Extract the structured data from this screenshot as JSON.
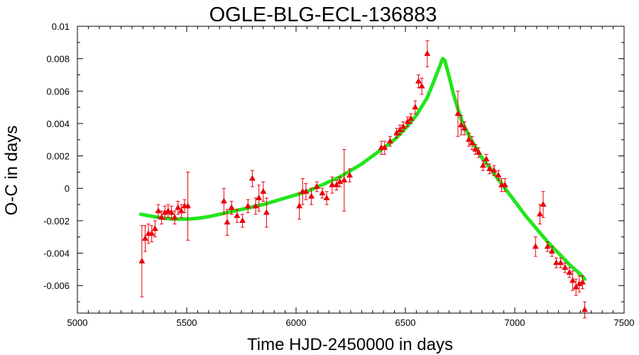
{
  "chart_data": {
    "type": "scatter",
    "title": "OGLE-BLG-ECL-136883",
    "xlabel": "Time HJD-2450000 in days",
    "ylabel": "O-C in days",
    "xlim": [
      5000,
      7500
    ],
    "ylim": [
      -0.0077,
      0.01
    ],
    "xticks": [
      5000,
      5500,
      6000,
      6500,
      7000,
      7500
    ],
    "xtick_labels": [
      "5000",
      "5500",
      "6000",
      "6500",
      "7000",
      "7500"
    ],
    "yticks": [
      -0.006,
      -0.004,
      -0.002,
      0,
      0.002,
      0.004,
      0.006,
      0.008,
      0.01
    ],
    "ytick_labels": [
      "-0.006",
      "-0.004",
      "-0.002",
      "0",
      "0.002",
      "0.004",
      "0.006",
      "0.008",
      "0.01"
    ],
    "grid": false,
    "colors": {
      "points": "#e8000b",
      "model": "#22e61c",
      "axes": "#000000"
    },
    "series": [
      {
        "kind": "points_with_errorbars",
        "marker": "triangle",
        "x": [
          5295,
          5310,
          5325,
          5340,
          5355,
          5370,
          5385,
          5400,
          5415,
          5430,
          5445,
          5460,
          5475,
          5490,
          5505,
          5670,
          5685,
          5705,
          5730,
          5755,
          5780,
          5800,
          5815,
          5830,
          5850,
          5865,
          6015,
          6030,
          6045,
          6070,
          6095,
          6120,
          6140,
          6165,
          6185,
          6200,
          6220,
          6245,
          6390,
          6405,
          6430,
          6460,
          6475,
          6490,
          6510,
          6525,
          6545,
          6560,
          6575,
          6600,
          6740,
          6755,
          6770,
          6790,
          6805,
          6820,
          6835,
          6855,
          6870,
          6885,
          6905,
          6925,
          6940,
          6955,
          7095,
          7115,
          7130,
          7150,
          7170,
          7190,
          7210,
          7230,
          7250,
          7265,
          7280,
          7295,
          7310,
          7320
        ],
        "y": [
          -0.0045,
          -0.0031,
          -0.0028,
          -0.0028,
          -0.0025,
          -0.0014,
          -0.0018,
          -0.0015,
          -0.0014,
          -0.0015,
          -0.0018,
          -0.0012,
          -0.0014,
          -0.0011,
          -0.0011,
          -0.0008,
          -0.0021,
          -0.0012,
          -0.0017,
          -0.002,
          -0.0011,
          0.0006,
          -0.0011,
          -0.0006,
          -0.0002,
          -0.0015,
          -0.0011,
          -0.0002,
          -0.0002,
          -0.0005,
          0.0001,
          -0.0003,
          -0.0006,
          0.0002,
          0.0002,
          0.0004,
          0.0005,
          0.0008,
          0.0025,
          0.0025,
          0.0029,
          0.0034,
          0.0036,
          0.0038,
          0.0041,
          0.0043,
          0.005,
          0.0066,
          0.0063,
          0.0083,
          0.0046,
          0.0039,
          0.0037,
          0.003,
          0.0028,
          0.0024,
          0.0022,
          0.0014,
          0.0018,
          0.0012,
          0.0011,
          0.0008,
          0.0002,
          0.0002,
          -0.0036,
          -0.0016,
          -0.001,
          -0.0036,
          -0.0039,
          -0.0046,
          -0.0046,
          -0.0049,
          -0.0052,
          -0.0057,
          -0.0061,
          -0.0059,
          -0.0058,
          -0.0075
        ],
        "yerr": [
          0.0022,
          0.0008,
          0.0006,
          0.0005,
          0.0005,
          0.0004,
          0.0004,
          0.0004,
          0.0004,
          0.0004,
          0.0004,
          0.0004,
          0.0004,
          0.0004,
          0.0021,
          0.0008,
          0.0008,
          0.0004,
          0.0004,
          0.0004,
          0.0004,
          0.0005,
          0.0005,
          0.0008,
          0.0006,
          0.0009,
          0.0008,
          0.0008,
          0.0005,
          0.0005,
          0.0003,
          0.0003,
          0.0004,
          0.0005,
          0.0003,
          0.0003,
          0.0019,
          0.0004,
          0.0004,
          0.0004,
          0.0003,
          0.0003,
          0.0003,
          0.0003,
          0.0003,
          0.0003,
          0.0004,
          0.0004,
          0.0005,
          0.0008,
          0.0014,
          0.0006,
          0.0004,
          0.0004,
          0.0004,
          0.0003,
          0.0003,
          0.0003,
          0.0003,
          0.0003,
          0.0003,
          0.0003,
          0.0004,
          0.0004,
          0.0006,
          0.0006,
          0.0008,
          0.0003,
          0.0003,
          0.0003,
          0.0003,
          0.0003,
          0.0003,
          0.0006,
          0.0005,
          0.0005,
          0.0004,
          0.0005
        ]
      },
      {
        "kind": "model_curve",
        "x": [
          5290,
          5350,
          5400,
          5450,
          5500,
          5550,
          5600,
          5650,
          5700,
          5750,
          5800,
          5850,
          5900,
          5950,
          6000,
          6050,
          6100,
          6150,
          6200,
          6250,
          6300,
          6350,
          6400,
          6450,
          6500,
          6550,
          6600,
          6630,
          6650,
          6670,
          6680,
          6700,
          6720,
          6740,
          6760,
          6800,
          6850,
          6900,
          6950,
          7000,
          7050,
          7100,
          7150,
          7200,
          7250,
          7300,
          7320
        ],
        "y": [
          -0.0016,
          -0.00175,
          -0.00185,
          -0.0019,
          -0.0019,
          -0.00185,
          -0.00175,
          -0.0016,
          -0.00145,
          -0.0013,
          -0.00115,
          -0.001,
          -0.0008,
          -0.0006,
          -0.0004,
          -0.0002,
          0.0001,
          0.0004,
          0.0007,
          0.0011,
          0.0015,
          0.002,
          0.0025,
          0.003,
          0.0037,
          0.0045,
          0.0056,
          0.0066,
          0.0073,
          0.008,
          0.0079,
          0.0069,
          0.0058,
          0.0049,
          0.0041,
          0.003,
          0.0019,
          0.001,
          0.0001,
          -0.0008,
          -0.0017,
          -0.0025,
          -0.0033,
          -0.004,
          -0.0047,
          -0.0053,
          -0.0056
        ]
      }
    ]
  }
}
